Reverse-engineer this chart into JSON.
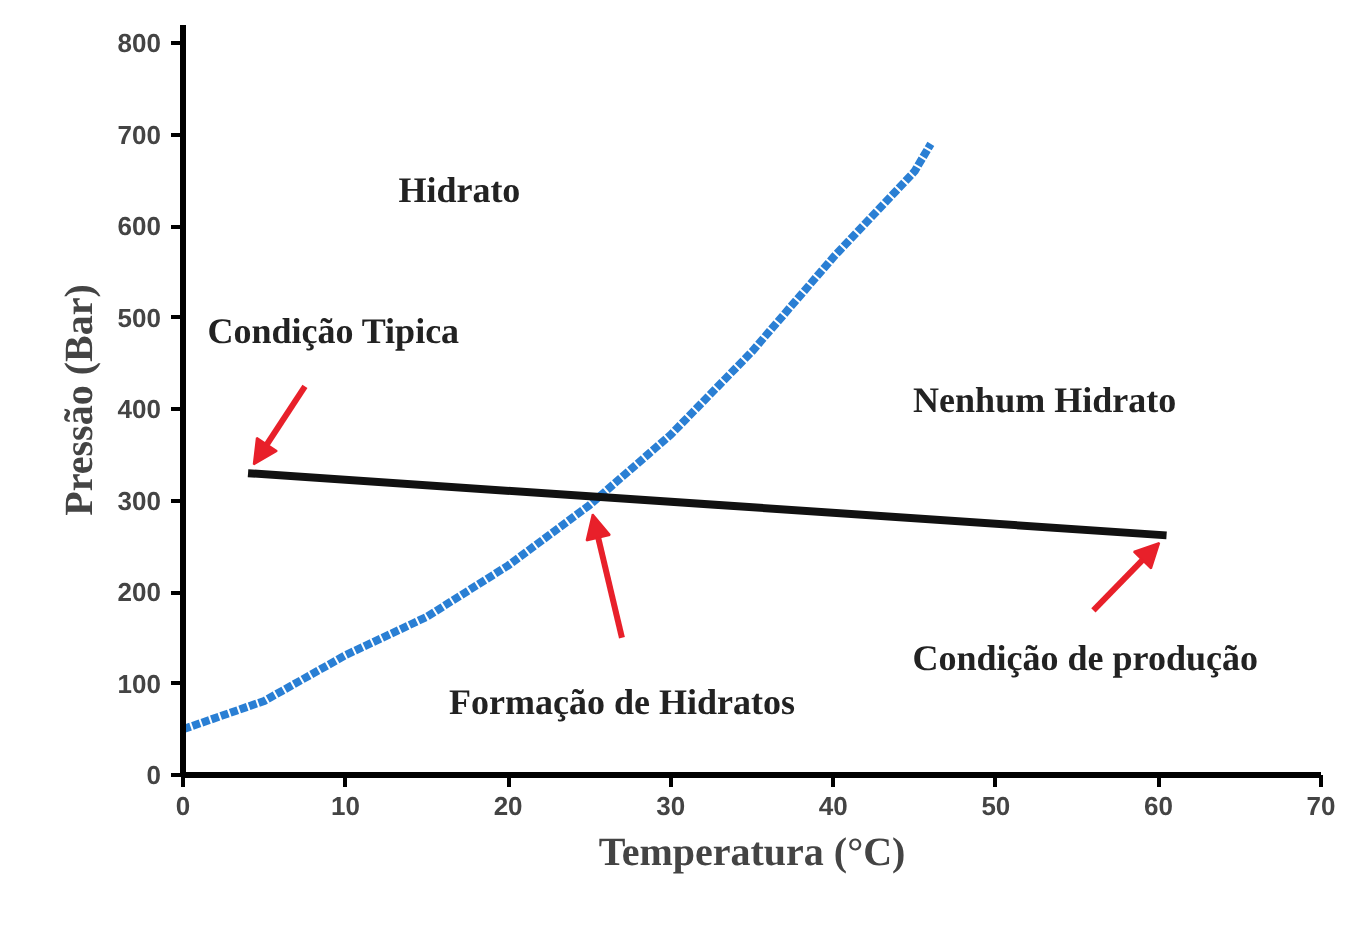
{
  "chart_data": {
    "type": "line",
    "xlabel": "Temperatura (°C)",
    "ylabel": "Pressão (Bar)",
    "xlim": [
      0,
      70
    ],
    "ylim": [
      0,
      820
    ],
    "xticks": [
      0,
      10,
      20,
      30,
      40,
      50,
      60,
      70
    ],
    "yticks": [
      0,
      100,
      200,
      300,
      400,
      500,
      600,
      700,
      800
    ],
    "grid": false,
    "series": [
      {
        "color": "#2a7fd4",
        "line_style": "dashed",
        "x": [
          0,
          5,
          10,
          15,
          20,
          25,
          30,
          35,
          40,
          45,
          46
        ],
        "values": [
          50,
          81,
          131,
          173,
          229,
          295,
          372,
          463,
          566,
          660,
          690
        ]
      },
      {
        "color": "#111111",
        "line_style": "solid",
        "x": [
          4,
          60.5
        ],
        "values": [
          330,
          262
        ]
      }
    ],
    "annotations": [
      "Hidrato",
      "Nenhum Hidrato",
      {
        "text": "Condição Tipica",
        "x": 4,
        "y": 330
      },
      {
        "text": "Formação de Hidratos",
        "x": 25,
        "y": 300
      },
      {
        "text": "Condição de produção",
        "x": 60.5,
        "y": 262
      }
    ]
  }
}
